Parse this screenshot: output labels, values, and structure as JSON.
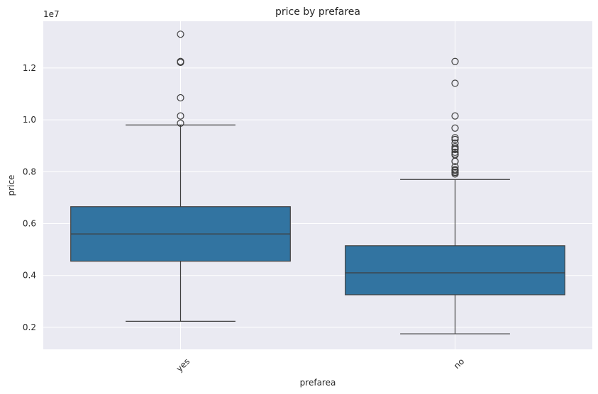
{
  "chart_data": {
    "type": "box",
    "title": "price by prefarea",
    "xlabel": "prefarea",
    "ylabel": "price",
    "offset_label": "1e7",
    "categories": [
      "yes",
      "no"
    ],
    "y_ticks": [
      0.2,
      0.4,
      0.6,
      0.8,
      1.0,
      1.2
    ],
    "y_tick_labels": [
      "0.2",
      "0.4",
      "0.6",
      "0.8",
      "1.0",
      "1.2"
    ],
    "ylim": [
      1150000,
      13800000
    ],
    "grid": true,
    "colors": {
      "box": "#3274a1",
      "background": "#eaeaf2",
      "grid": "#ffffff",
      "line": "#3f3f3f"
    },
    "series": [
      {
        "category": "yes",
        "whisker_low": 2233000,
        "q1": 4550000,
        "median": 5600000,
        "q3": 6650000,
        "whisker_high": 9800000,
        "outliers": [
          13300000,
          12250000,
          12215000,
          10850000,
          10150000,
          9870000
        ]
      },
      {
        "category": "no",
        "whisker_low": 1750000,
        "q1": 3255000,
        "median": 4100000,
        "q3": 5145000,
        "whisker_high": 7700000,
        "outliers": [
          12250000,
          11410000,
          10150000,
          9681000,
          9310000,
          9240000,
          9100000,
          8960000,
          8890000,
          8855000,
          8750000,
          8680000,
          8645000,
          8400000,
          8400000,
          8190000,
          8080000,
          8043000,
          7980000,
          7962500,
          7910000
        ]
      }
    ]
  }
}
